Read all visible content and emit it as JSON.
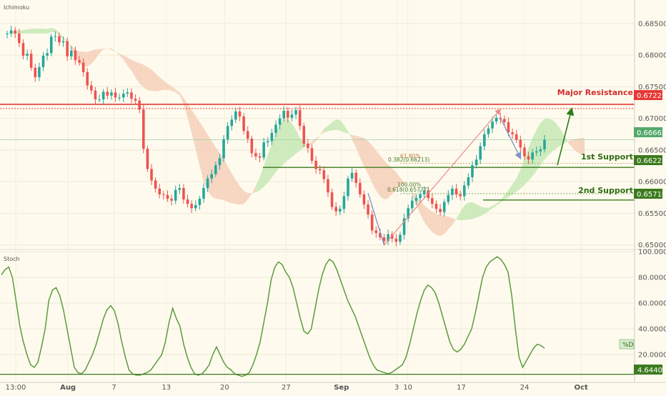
{
  "price_panel": {
    "label": "Ichimoku"
  },
  "stoch_panel": {
    "label": "Stoch",
    "series_tag": "%D",
    "level_value": "4.6440"
  },
  "annotations": {
    "major_resistance": "Major Resistance",
    "first_support": "1st Support",
    "second_support": "2nd Support",
    "fib_upper_1": "61.80%",
    "fib_upper_2": "0.382(0.66213)",
    "fib_lower_1": "100.00%",
    "fib_lower_2": "0.618(0.65777)"
  },
  "price_tags": {
    "resistance": "0.67222",
    "current": "0.66662",
    "first_support": "0.66225",
    "second_support": "0.65710"
  },
  "colors": {
    "background": "#fefbee",
    "up_candle": "#26a69a",
    "down_candle": "#ef5350",
    "resistance": "#e53935",
    "support": "#3c7a1e",
    "stoch": "#5c9a3c",
    "cloud_bull": "#c5e8b4",
    "cloud_bear": "#f6cfb8",
    "projection_up": "#e88a8a",
    "projection_down": "#7f95c8",
    "target_arrow": "#2e7d1a"
  },
  "chart_data": [
    {
      "type": "line",
      "title": "",
      "subtitle": "Ichimoku",
      "x_tick_labels": [
        "13:00",
        "Aug",
        "7",
        "13",
        "20",
        "27",
        "Sep",
        "3",
        "10",
        "17",
        "24",
        "Oct"
      ],
      "y_tick_labels": [
        "0.68500",
        "0.68000",
        "0.67500",
        "0.67000",
        "0.66500",
        "0.66000",
        "0.65500",
        "0.65000"
      ],
      "ylim": [
        0.6494,
        0.6887
      ],
      "series": [
        {
          "values": [
            0.6834,
            0.6839,
            0.6834,
            0.6819,
            0.6799,
            0.6802,
            0.678,
            0.6765,
            0.6781,
            0.6799,
            0.6803,
            0.6829,
            0.683,
            0.682,
            0.6822,
            0.6798,
            0.6807,
            0.6792,
            0.6788,
            0.6773,
            0.6752,
            0.6744,
            0.673,
            0.673,
            0.6742,
            0.6736,
            0.6741,
            0.6733,
            0.6733,
            0.6739,
            0.6741,
            0.6731,
            0.6728,
            0.6714,
            0.6652,
            0.662,
            0.6602,
            0.6589,
            0.658,
            0.6579,
            0.6573,
            0.657,
            0.6587,
            0.659,
            0.6572,
            0.6565,
            0.6558,
            0.6563,
            0.6573,
            0.659,
            0.6605,
            0.6612,
            0.6626,
            0.6637,
            0.6667,
            0.6688,
            0.6698,
            0.6711,
            0.6703,
            0.668,
            0.6668,
            0.6645,
            0.664,
            0.6638,
            0.6662,
            0.6664,
            0.6677,
            0.669,
            0.67,
            0.6712,
            0.6701,
            0.6706,
            0.6713,
            0.6688,
            0.666,
            0.6653,
            0.6633,
            0.662,
            0.6618,
            0.6604,
            0.6583,
            0.656,
            0.6553,
            0.6557,
            0.6577,
            0.6605,
            0.6614,
            0.6598,
            0.658,
            0.6564,
            0.6548,
            0.6523,
            0.6519,
            0.6512,
            0.6506,
            0.6517,
            0.651,
            0.6505,
            0.6516,
            0.6542,
            0.6558,
            0.657,
            0.6574,
            0.658,
            0.6586,
            0.6574,
            0.6565,
            0.6557,
            0.6552,
            0.6568,
            0.6579,
            0.6589,
            0.658,
            0.6577,
            0.6594,
            0.6607,
            0.6626,
            0.6635,
            0.6656,
            0.6675,
            0.6684,
            0.6695,
            0.6701,
            0.6699,
            0.6694,
            0.6678,
            0.6675,
            0.6666,
            0.6654,
            0.664,
            0.6635,
            0.6646,
            0.6648,
            0.6651,
            0.6666
          ]
        }
      ],
      "levels": {
        "major_resistance": 0.67222,
        "first_support": 0.66225,
        "second_support": 0.6571
      }
    },
    {
      "type": "line",
      "title": "",
      "subtitle": "Stoch",
      "y_tick_labels": [
        "100.0000",
        "80.0000",
        "60.0000",
        "40.0000",
        "20.0000"
      ],
      "ylim": [
        0,
        100
      ],
      "series": [
        {
          "name": "%D",
          "values": [
            82,
            86,
            88,
            80,
            62,
            43,
            30,
            20,
            12,
            10,
            14,
            26,
            40,
            62,
            70,
            72,
            66,
            55,
            40,
            25,
            10,
            6,
            5,
            8,
            14,
            20,
            28,
            38,
            48,
            55,
            58,
            54,
            44,
            30,
            18,
            8,
            5,
            4,
            4,
            5,
            6,
            8,
            12,
            16,
            20,
            30,
            45,
            56,
            48,
            42,
            28,
            18,
            10,
            5,
            4,
            5,
            8,
            12,
            20,
            26,
            20,
            14,
            10,
            8,
            5,
            4,
            3,
            4,
            6,
            12,
            20,
            30,
            45,
            60,
            78,
            88,
            92,
            90,
            84,
            80,
            72,
            60,
            48,
            38,
            36,
            40,
            55,
            70,
            82,
            90,
            94,
            92,
            86,
            78,
            70,
            62,
            56,
            50,
            42,
            34,
            26,
            18,
            12,
            8,
            7,
            6,
            5,
            6,
            8,
            10,
            12,
            18,
            28,
            40,
            52,
            62,
            70,
            74,
            72,
            68,
            60,
            50,
            40,
            30,
            24,
            22,
            24,
            28,
            34,
            40,
            52,
            66,
            80,
            88,
            92,
            94,
            96,
            94,
            90,
            84,
            66,
            40,
            18,
            10,
            15,
            20,
            25,
            28,
            27,
            25
          ]
        }
      ],
      "reference_line": 4.644
    }
  ]
}
